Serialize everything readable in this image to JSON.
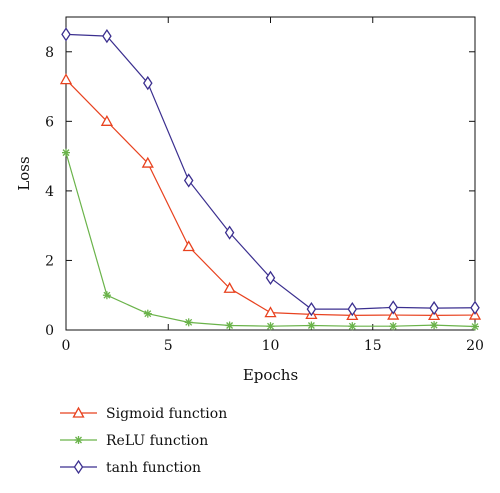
{
  "chart_data": {
    "type": "line",
    "xlabel": "Epochs",
    "ylabel": "Loss",
    "xlim": [
      0,
      20
    ],
    "ylim": [
      0,
      9
    ],
    "xticks": [
      0,
      5,
      10,
      15,
      20
    ],
    "yticks": [
      0,
      2,
      4,
      6,
      8
    ],
    "grid": false,
    "legend_position": "below",
    "x": [
      0,
      2,
      4,
      6,
      8,
      10,
      12,
      14,
      16,
      18,
      20
    ],
    "series": [
      {
        "name": "Sigmoid function",
        "color": "#e8421f",
        "marker": "triangle",
        "values": [
          7.2,
          6.0,
          4.8,
          2.4,
          1.2,
          0.5,
          0.45,
          0.42,
          0.43,
          0.42,
          0.43
        ]
      },
      {
        "name": "ReLU function",
        "color": "#6ab34a",
        "marker": "asterisk",
        "values": [
          5.1,
          1.0,
          0.47,
          0.22,
          0.13,
          0.11,
          0.13,
          0.11,
          0.11,
          0.14,
          0.1
        ]
      },
      {
        "name": "tanh function",
        "color": "#3b2f8f",
        "marker": "diamond",
        "values": [
          8.5,
          8.45,
          7.1,
          4.3,
          2.8,
          1.5,
          0.6,
          0.6,
          0.65,
          0.63,
          0.64
        ]
      }
    ]
  }
}
